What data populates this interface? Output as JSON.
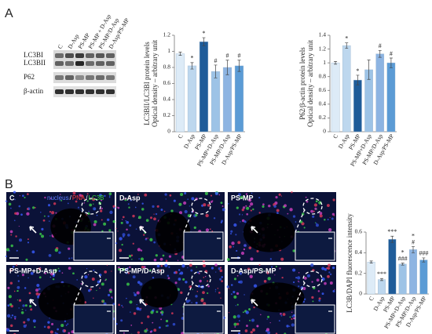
{
  "panel_labels": [
    "A",
    "B"
  ],
  "blot": {
    "lanes": [
      "C",
      "D-Asp",
      "PS-MP",
      "PS-MP + D-Asp",
      "PS-MP/D-Asp",
      "D-Asp/PS-MP"
    ],
    "rows": [
      "LC3BI",
      "LC3BII",
      "P62",
      "β-actin"
    ]
  },
  "micrographs": {
    "stain_legend": [
      {
        "text": "nucleus",
        "color": "#5b7cff"
      },
      {
        "text": "PNA",
        "color": "#ff3b3b"
      },
      {
        "text": "LC3B",
        "color": "#3ad63a"
      }
    ],
    "separator": "/",
    "panels": [
      "C",
      "D-Asp",
      "PS-MP",
      "PS-MP+D-Asp",
      "PS-MP/D-Asp",
      "D-Asp/PS-MP"
    ]
  },
  "chart_data": [
    {
      "type": "bar",
      "y_label": [
        "LC3BII/LC3BI protein levels",
        "Optical density – arbitrary unit"
      ],
      "categories": [
        "C",
        "D-Asp",
        "PS-MP",
        "PS-MP+D-Asp",
        "PS-MP/D-Asp",
        "D-Asp/PS-MP"
      ],
      "values": [
        0.97,
        0.82,
        1.12,
        0.75,
        0.8,
        0.82
      ],
      "errors": [
        0.02,
        0.04,
        0.05,
        0.08,
        0.09,
        0.07
      ],
      "colors": [
        "#ddebf7",
        "#bdd7ee",
        "#1f5c99",
        "#9dc3e6",
        "#8db4e2",
        "#5b9bd5"
      ],
      "annotations": [
        null,
        [
          "*"
        ],
        [
          "*"
        ],
        [
          "#"
        ],
        [
          "#"
        ],
        [
          "#"
        ]
      ],
      "ylim": [
        0,
        1.2
      ],
      "yticks": [
        0,
        0.2,
        0.4,
        0.6,
        0.8,
        1,
        1.2
      ]
    },
    {
      "type": "bar",
      "y_label": [
        "P62/β-actin protein levels",
        "Optical density – arbitrary unit"
      ],
      "categories": [
        "C",
        "D-Asp",
        "PS-MP",
        "PS-MP+D-Asp",
        "PS-MP/D-Asp",
        "D-Asp/PS-MP"
      ],
      "values": [
        1.0,
        1.25,
        0.75,
        0.9,
        1.13,
        1.0
      ],
      "errors": [
        0.02,
        0.04,
        0.07,
        0.14,
        0.05,
        0.07
      ],
      "colors": [
        "#ddebf7",
        "#bdd7ee",
        "#1f5c99",
        "#9dc3e6",
        "#8db4e2",
        "#5b9bd5"
      ],
      "annotations": [
        null,
        [
          "*"
        ],
        [
          "*"
        ],
        null,
        [
          "#"
        ],
        [
          "#"
        ]
      ],
      "ylim": [
        0,
        1.4
      ],
      "yticks": [
        0,
        0.2,
        0.4,
        0.6,
        0.8,
        1,
        1.2,
        1.4
      ]
    },
    {
      "type": "bar",
      "y_label": [
        "LC3B/DAPI fluorescence intensity"
      ],
      "categories": [
        "C",
        "D-Asp",
        "PS-MP",
        "PS-MP+D-Asp",
        "PS-MP/D-Asp",
        "D-Asp/PS-MP"
      ],
      "values": [
        0.31,
        0.14,
        0.53,
        0.29,
        0.43,
        0.33
      ],
      "errors": [
        0.01,
        0.01,
        0.03,
        0.01,
        0.03,
        0.02
      ],
      "colors": [
        "#ddebf7",
        "#bdd7ee",
        "#1f5c99",
        "#9dc3e6",
        "#8db4e2",
        "#5b9bd5"
      ],
      "annotations": [
        null,
        [
          "***"
        ],
        [
          "***"
        ],
        [
          "*",
          "###"
        ],
        [
          "*",
          "#"
        ],
        [
          "###"
        ]
      ],
      "ylim": [
        0,
        0.6
      ],
      "yticks": [
        0,
        0.2,
        0.4,
        0.6
      ]
    }
  ]
}
